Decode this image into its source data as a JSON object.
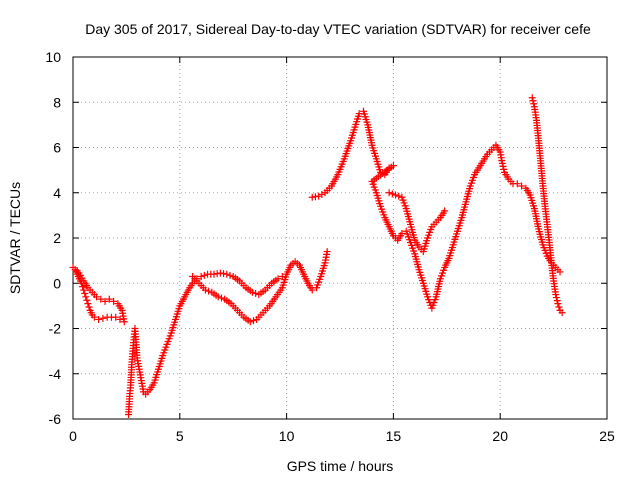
{
  "chart_data": {
    "type": "scatter",
    "title": "Day 305 of 2017, Sidereal Day-to-day VTEC variation (SDTVAR) for receiver cefe",
    "xlabel": "GPS time / hours",
    "ylabel": "SDTVAR / TECUs",
    "xlim": [
      0,
      25
    ],
    "ylim": [
      -6,
      10
    ],
    "xticks": [
      0,
      5,
      10,
      15,
      20,
      25
    ],
    "yticks": [
      -6,
      -4,
      -2,
      0,
      2,
      4,
      6,
      8,
      10
    ],
    "grid": true,
    "marker": "+",
    "color": "#ff0000",
    "series": [
      {
        "points": [
          [
            0.0,
            0.7
          ],
          [
            0.1,
            0.6
          ],
          [
            0.2,
            0.4
          ],
          [
            0.3,
            0.2
          ],
          [
            0.4,
            0.0
          ],
          [
            0.5,
            -0.3
          ],
          [
            0.6,
            -0.6
          ],
          [
            0.7,
            -0.9
          ],
          [
            0.8,
            -1.2
          ],
          [
            0.9,
            -1.4
          ],
          [
            1.0,
            -1.5
          ],
          [
            1.2,
            -1.6
          ],
          [
            1.4,
            -1.55
          ],
          [
            1.6,
            -1.5
          ],
          [
            1.8,
            -1.5
          ],
          [
            2.0,
            -1.5
          ],
          [
            2.2,
            -1.6
          ],
          [
            2.4,
            -1.7
          ],
          [
            2.3,
            -1.2
          ],
          [
            2.1,
            -0.9
          ],
          [
            1.9,
            -0.8
          ],
          [
            1.7,
            -0.7
          ],
          [
            1.5,
            -0.8
          ],
          [
            1.3,
            -0.7
          ],
          [
            1.1,
            -0.6
          ],
          [
            0.9,
            -0.4
          ],
          [
            0.7,
            -0.2
          ],
          [
            0.5,
            0.1
          ],
          [
            0.35,
            0.35
          ],
          [
            0.2,
            0.55
          ],
          [
            2.6,
            -5.8
          ],
          [
            2.65,
            -5.0
          ],
          [
            2.7,
            -4.5
          ],
          [
            2.75,
            -3.6
          ],
          [
            2.8,
            -3.0
          ],
          [
            2.85,
            -2.5
          ],
          [
            2.9,
            -2.0
          ],
          [
            2.95,
            -2.6
          ],
          [
            3.0,
            -3.3
          ],
          [
            3.1,
            -3.8
          ],
          [
            3.2,
            -4.3
          ],
          [
            3.3,
            -4.8
          ],
          [
            3.4,
            -4.9
          ],
          [
            3.5,
            -4.8
          ],
          [
            3.6,
            -4.7
          ],
          [
            3.8,
            -4.4
          ],
          [
            4.0,
            -3.8
          ],
          [
            4.2,
            -3.2
          ],
          [
            4.4,
            -2.7
          ],
          [
            4.6,
            -2.2
          ],
          [
            4.8,
            -1.6
          ],
          [
            5.0,
            -1.0
          ],
          [
            5.4,
            -0.3
          ],
          [
            5.6,
            0.0
          ],
          [
            5.8,
            0.2
          ],
          [
            6.0,
            0.3
          ],
          [
            6.3,
            0.4
          ],
          [
            6.6,
            0.4
          ],
          [
            6.9,
            0.45
          ],
          [
            7.2,
            0.4
          ],
          [
            7.5,
            0.3
          ],
          [
            7.8,
            0.1
          ],
          [
            8.1,
            -0.2
          ],
          [
            8.4,
            -0.4
          ],
          [
            8.7,
            -0.5
          ],
          [
            9.0,
            -0.3
          ],
          [
            9.3,
            0.0
          ],
          [
            9.6,
            0.2
          ],
          [
            9.8,
            0.3
          ],
          [
            5.6,
            0.3
          ],
          [
            5.9,
            0.0
          ],
          [
            6.2,
            -0.3
          ],
          [
            6.5,
            -0.4
          ],
          [
            6.8,
            -0.6
          ],
          [
            7.1,
            -0.7
          ],
          [
            7.4,
            -0.9
          ],
          [
            7.7,
            -1.2
          ],
          [
            8.0,
            -1.5
          ],
          [
            8.3,
            -1.7
          ],
          [
            8.6,
            -1.6
          ],
          [
            8.9,
            -1.3
          ],
          [
            9.2,
            -1.0
          ],
          [
            9.5,
            -0.6
          ],
          [
            9.8,
            -0.2
          ],
          [
            10.0,
            0.4
          ],
          [
            10.2,
            0.8
          ],
          [
            10.4,
            0.95
          ],
          [
            10.6,
            0.8
          ],
          [
            10.8,
            0.4
          ],
          [
            11.0,
            0.0
          ],
          [
            11.2,
            -0.3
          ],
          [
            11.4,
            -0.2
          ],
          [
            11.6,
            0.3
          ],
          [
            11.8,
            0.9
          ],
          [
            11.9,
            1.4
          ],
          [
            11.2,
            3.8
          ],
          [
            11.5,
            3.85
          ],
          [
            11.8,
            4.0
          ],
          [
            12.1,
            4.3
          ],
          [
            12.4,
            4.8
          ],
          [
            12.7,
            5.5
          ],
          [
            13.0,
            6.3
          ],
          [
            13.2,
            6.9
          ],
          [
            13.4,
            7.5
          ],
          [
            13.6,
            7.6
          ],
          [
            13.8,
            7.0
          ],
          [
            14.0,
            6.1
          ],
          [
            14.2,
            5.5
          ],
          [
            14.4,
            4.9
          ],
          [
            14.6,
            4.8
          ],
          [
            14.8,
            5.1
          ],
          [
            15.0,
            5.2
          ],
          [
            14.0,
            4.5
          ],
          [
            14.2,
            4.0
          ],
          [
            14.4,
            3.4
          ],
          [
            14.6,
            2.9
          ],
          [
            14.8,
            2.5
          ],
          [
            15.0,
            2.1
          ],
          [
            15.2,
            1.9
          ],
          [
            15.4,
            2.2
          ],
          [
            15.6,
            2.3
          ],
          [
            15.8,
            1.8
          ],
          [
            16.0,
            1.3
          ],
          [
            16.2,
            0.6
          ],
          [
            16.4,
            0.0
          ],
          [
            16.6,
            -0.6
          ],
          [
            16.8,
            -1.1
          ],
          [
            17.0,
            -0.6
          ],
          [
            17.2,
            0.2
          ],
          [
            17.4,
            0.7
          ],
          [
            17.6,
            1.1
          ],
          [
            17.8,
            1.7
          ],
          [
            18.0,
            2.3
          ],
          [
            18.2,
            2.9
          ],
          [
            18.4,
            3.6
          ],
          [
            18.6,
            4.3
          ],
          [
            18.8,
            4.8
          ],
          [
            19.0,
            5.1
          ],
          [
            19.2,
            5.4
          ],
          [
            19.4,
            5.7
          ],
          [
            19.6,
            5.9
          ],
          [
            19.8,
            6.1
          ],
          [
            20.0,
            5.8
          ],
          [
            20.1,
            5.3
          ],
          [
            20.2,
            4.9
          ],
          [
            20.4,
            4.6
          ],
          [
            20.6,
            4.4
          ],
          [
            20.8,
            4.4
          ],
          [
            21.0,
            4.3
          ],
          [
            21.2,
            4.2
          ],
          [
            21.4,
            3.9
          ],
          [
            21.6,
            3.3
          ],
          [
            21.8,
            2.4
          ],
          [
            22.0,
            1.7
          ],
          [
            22.2,
            1.2
          ],
          [
            22.4,
            0.9
          ],
          [
            22.6,
            0.7
          ],
          [
            22.8,
            0.5
          ],
          [
            14.8,
            4.0
          ],
          [
            15.1,
            3.9
          ],
          [
            15.4,
            3.8
          ],
          [
            15.6,
            3.3
          ],
          [
            15.8,
            2.6
          ],
          [
            16.0,
            1.9
          ],
          [
            16.2,
            1.6
          ],
          [
            16.4,
            1.4
          ],
          [
            16.6,
            2.0
          ],
          [
            16.8,
            2.5
          ],
          [
            17.0,
            2.7
          ],
          [
            17.2,
            2.9
          ],
          [
            17.4,
            3.2
          ],
          [
            21.5,
            8.2
          ],
          [
            21.6,
            7.8
          ],
          [
            21.7,
            7.2
          ],
          [
            21.8,
            6.3
          ],
          [
            21.9,
            5.3
          ],
          [
            22.0,
            4.3
          ],
          [
            22.1,
            3.4
          ],
          [
            22.2,
            2.6
          ],
          [
            22.3,
            1.8
          ],
          [
            22.4,
            0.9
          ],
          [
            22.5,
            0.1
          ],
          [
            22.6,
            -0.5
          ],
          [
            22.7,
            -0.9
          ],
          [
            22.8,
            -1.2
          ],
          [
            22.9,
            -1.3
          ]
        ]
      }
    ]
  }
}
